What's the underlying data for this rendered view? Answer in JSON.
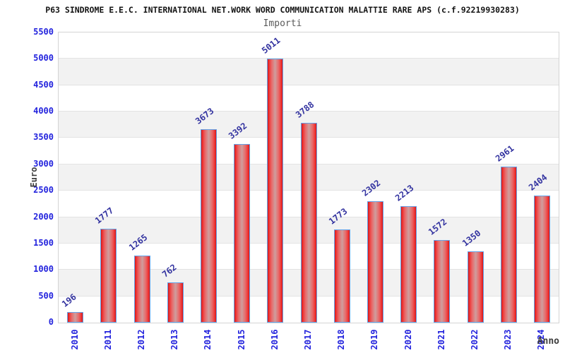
{
  "header": {
    "title": "P63 SINDROME E.E.C. INTERNATIONAL NET.WORK WORD COMMUNICATION MALATTIE RARE APS (c.f.92219930283)",
    "subtitle": "Importi"
  },
  "chart_data": {
    "type": "bar",
    "title": "P63 SINDROME E.E.C. INTERNATIONAL NET.WORK WORD COMMUNICATION MALATTIE RARE APS (c.f.92219930283)",
    "subtitle": "Importi",
    "categories": [
      "2010",
      "2011",
      "2012",
      "2013",
      "2014",
      "2015",
      "2016",
      "2017",
      "2018",
      "2019",
      "2020",
      "2021",
      "2022",
      "2023",
      "2024"
    ],
    "values": [
      196,
      1777,
      1265,
      762,
      3673,
      3392,
      5011,
      3788,
      1773,
      2302,
      2213,
      1572,
      1350,
      2961,
      2404
    ],
    "xlabel": "Anno",
    "ylabel": "Euro",
    "ylim": [
      0,
      5500
    ],
    "yticks": [
      0,
      500,
      1000,
      1500,
      2000,
      2500,
      3000,
      3500,
      4000,
      4500,
      5000,
      5500
    ],
    "grid": true,
    "alternating_bands": true,
    "legend": "none"
  },
  "colors": {
    "bar_edge": "#d21616",
    "bar_center": "#cf9e9e",
    "bar_border": "#64a2e8",
    "axis_tick_label": "#2222dd",
    "value_label": "#3333a0",
    "axis_title": "#3d3d3d",
    "band": "#f2f2f2",
    "gridline": "#e3e3e3",
    "plot_border": "#d4d4d4",
    "title": "#141414",
    "subtitle": "#5a5a5a",
    "background": "#ffffff"
  }
}
